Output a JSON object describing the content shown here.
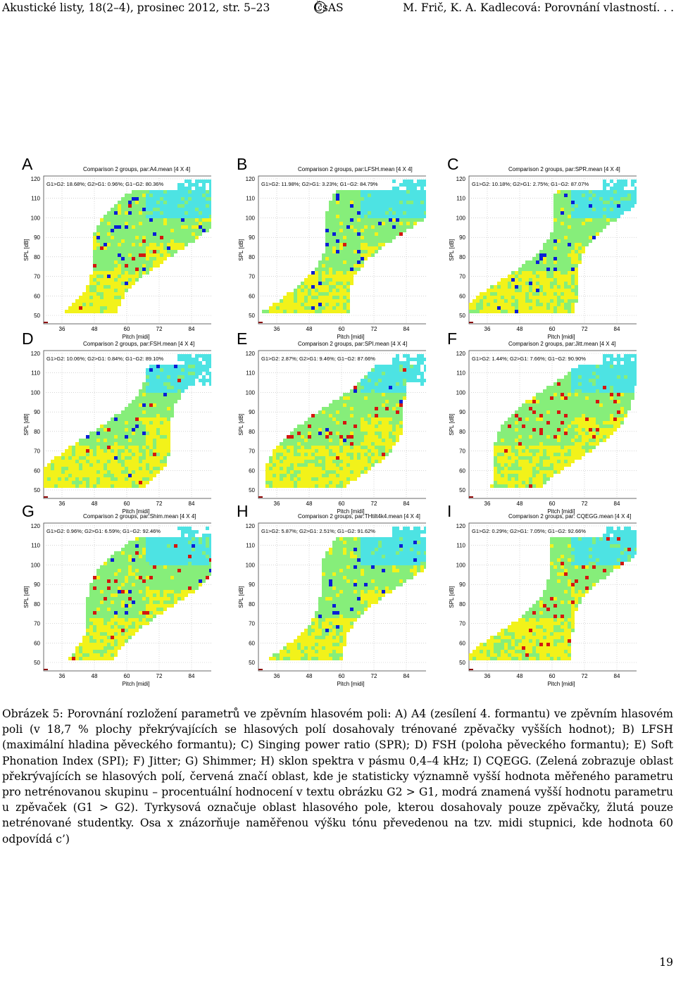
{
  "header": {
    "left": "Akustické listy, 18(2–4), prosinec 2012, str. 5–23",
    "center_symbol": "c",
    "center": "ČsAS",
    "right": "M. Frič, K. A. Kadlecová: Porovnání vlastností. . ."
  },
  "axes": {
    "ylabel": "SPL [dB]",
    "xlabel": "Pitch [midi]",
    "yticks": [
      "50",
      "60",
      "70",
      "80",
      "90",
      "100",
      "110",
      "120"
    ],
    "xticks": [
      "36",
      "48",
      "60",
      "72",
      "84"
    ]
  },
  "colors": {
    "cyan": "#4de3e3",
    "green": "#86ee7a",
    "yellow": "#f2f21a",
    "red": "#d4170f",
    "blue": "#0a1ed6"
  },
  "panels": [
    {
      "letter": "A",
      "title": "Comparison 2 groups, par:A4.mean [4 X 4]",
      "stats": "G1>G2: 18.68%; G2>G1: 0.96%; G1~G2: 80.36%"
    },
    {
      "letter": "B",
      "title": "Comparison 2 groups, par:LFSH.mean [4 X 4]",
      "stats": "G1>G2: 11.98%; G2>G1: 3.23%; G1~G2: 84.79%"
    },
    {
      "letter": "C",
      "title": "Comparison 2 groups, par:SPR.mean [4 X 4]",
      "stats": "G1>G2: 10.18%; G2>G1: 2.75%; G1~G2: 87.07%"
    },
    {
      "letter": "D",
      "title": "Comparison 2 groups, par:FSH.mean [4 X 4]",
      "stats": "G1>G2: 10.06%; G2>G1: 0.84%; G1~G2: 89.10%"
    },
    {
      "letter": "E",
      "title": "Comparison 2 groups, par:SPI.mean [4 X 4]",
      "stats": "G1>G2: 2.87%; G2>G1: 9.46%; G1~G2: 87.66%"
    },
    {
      "letter": "F",
      "title": "Comparison 2 groups, par:Jitt.mean [4 X 4]",
      "stats": "G1>G2: 1.44%; G2>G1: 7.66%; G1~G2: 90.90%"
    },
    {
      "letter": "G",
      "title": "Comparison 2 groups, par:Shim.mean [4 X 4]",
      "stats": "G1>G2: 0.96%; G2>G1: 6.59%; G1~G2: 92.46%"
    },
    {
      "letter": "H",
      "title": "Comparison 2 groups, par:THtilt4k4.mean [4 X 4]",
      "stats": "G1>G2: 5.87%; G2>G1: 2.51%; G1~G2: 91.62%"
    },
    {
      "letter": "I",
      "title": "Comparison 2 groups, par: CQEGG.mean [4 X 4]",
      "stats": "G1>G2: 0.29%; G2>G1: 7.05%; G1~G2: 92.66%"
    }
  ],
  "caption": "Obrázek 5: Porovnání rozložení parametrů ve zpěvním hlasovém poli: A) A4 (zesílení 4. formantu) ve zpěvním hlasovém poli (v 18,7 % plochy překrývajících se hlasových polí dosahovaly trénované zpěvačky vyšších hodnot); B) LFSH (maximální hladina pěveckého formantu); C) Singing power ratio (SPR); D) FSH (poloha pěveckého formantu); E) Soft Phonation Index (SPI); F) Jitter; G) Shimmer; H) sklon spektra v pásmu 0,4–4 kHz; I) CQEGG. (Zelená zobrazuje oblast překrývajících se hlasových polí, červená značí oblast, kde je statisticky významně vyšší hodnota měřeného parametru pro netrénovanou skupinu – procentuální hodnocení v textu obrázku G2 > G1, modrá znamená vyšší hodnotu parametru u zpěvaček (G1 > G2). Tyrkysová označuje oblast hlasového pole, kterou dosahovaly pouze zpěvačky, žlutá pouze netrénované studentky. Osa x znázorňuje naměřenou výšku tónu převedenou na tzv. midi stupnici, kde hodnota 60 odpovídá c’)",
  "page_number": "19"
}
